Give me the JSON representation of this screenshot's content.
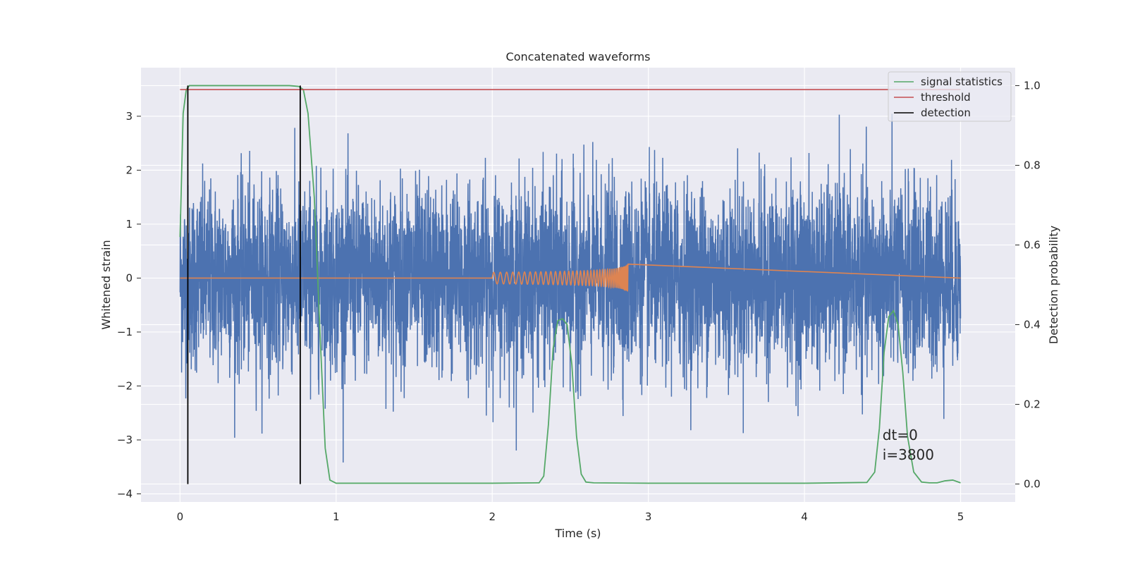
{
  "chart_data": {
    "type": "line",
    "title": "Concatenated waveforms",
    "xlabel": "Time (s)",
    "ylabel": "Whitened strain",
    "y2label": "Detection probability",
    "xlim": [
      -0.25,
      5.35
    ],
    "ylim": [
      -4.15,
      3.9
    ],
    "y2lim": [
      -0.045,
      1.045
    ],
    "x_ticks": [
      0,
      1,
      2,
      3,
      4,
      5
    ],
    "y_ticks": [
      -4,
      -3,
      -2,
      -1,
      0,
      1,
      2,
      3
    ],
    "y2_ticks": [
      0.0,
      0.2,
      0.4,
      0.6,
      0.8,
      1.0
    ],
    "grid": true,
    "legend_position": "top-right",
    "colors": {
      "strain": "#4c72b0",
      "injection": "#dd8452",
      "signal_statistics": "#55a868",
      "threshold": "#c44e52",
      "detection": "#000000",
      "axes_bg": "#eaeaf2",
      "grid": "#ffffff"
    },
    "series": [
      {
        "name": "signal statistics",
        "axis": "right",
        "x": [
          0,
          0.02,
          0.04,
          0.06,
          0.08,
          0.1,
          0.3,
          0.5,
          0.7,
          0.76,
          0.79,
          0.82,
          0.86,
          0.9,
          0.93,
          0.96,
          1.0,
          1.5,
          2.0,
          2.3,
          2.33,
          2.36,
          2.39,
          2.42,
          2.45,
          2.48,
          2.51,
          2.54,
          2.57,
          2.6,
          2.65,
          3.0,
          3.5,
          4.0,
          4.4,
          4.45,
          4.48,
          4.51,
          4.54,
          4.57,
          4.6,
          4.63,
          4.66,
          4.7,
          4.75,
          4.8,
          4.85,
          4.9,
          4.95,
          5.0
        ],
        "y": [
          0.62,
          0.93,
          0.99,
          1.0,
          1.0,
          1.0,
          1.0,
          1.0,
          1.0,
          0.998,
          0.99,
          0.93,
          0.72,
          0.35,
          0.09,
          0.01,
          0.002,
          0.002,
          0.002,
          0.003,
          0.02,
          0.15,
          0.34,
          0.41,
          0.415,
          0.4,
          0.3,
          0.12,
          0.025,
          0.005,
          0.003,
          0.002,
          0.002,
          0.002,
          0.004,
          0.03,
          0.14,
          0.33,
          0.42,
          0.435,
          0.4,
          0.28,
          0.12,
          0.03,
          0.005,
          0.003,
          0.003,
          0.008,
          0.01,
          0.003
        ]
      },
      {
        "name": "threshold",
        "axis": "right",
        "x": [
          0,
          5
        ],
        "y": [
          0.99,
          0.99
        ]
      },
      {
        "name": "detection",
        "axis": "right",
        "x": [
          0.05,
          0.77
        ],
        "y_range": [
          0.0,
          1.0
        ]
      }
    ],
    "noise_amplitude": 0.85,
    "injection": {
      "t_start": 2.0,
      "t_end": 2.87,
      "peak_amplitude": 0.22
    },
    "annotations": [
      "dt=0",
      "i=3800"
    ]
  }
}
